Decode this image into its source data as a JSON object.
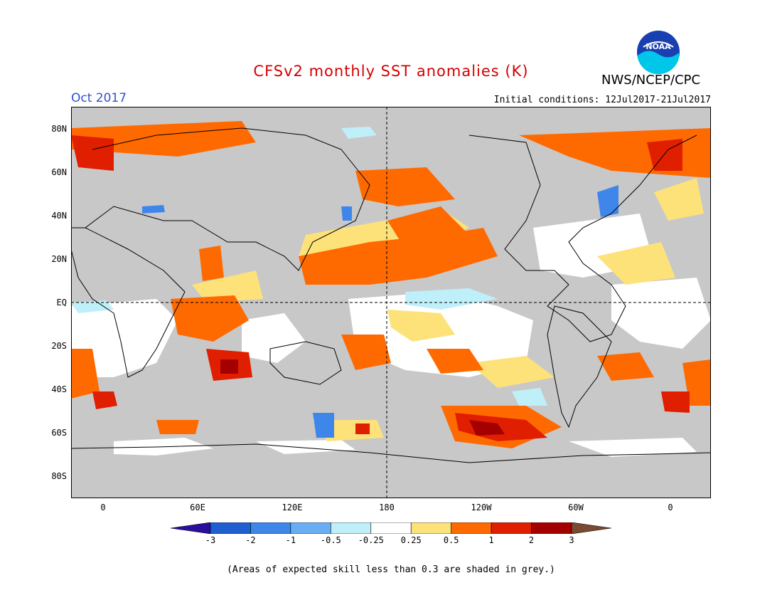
{
  "header": {
    "title": "CFSv2 monthly SST anomalies (K)",
    "agency": "NWS/NCEP/CPC",
    "month": "Oct 2017",
    "initial_conditions": "Initial conditions: 12Jul2017-21Jul2017",
    "logo_text": "NOAA"
  },
  "map": {
    "lat_labels": [
      "80N",
      "60N",
      "40N",
      "20N",
      "EQ",
      "20S",
      "40S",
      "60S",
      "80S"
    ],
    "lon_labels": [
      "0",
      "60E",
      "120E",
      "180",
      "120W",
      "60W",
      "0"
    ],
    "colors": {
      "land": "#c8c8c8",
      "grey_low_skill": "#c8c8c8",
      "neutral": "#ffffff"
    }
  },
  "colorbar": {
    "labels": [
      "-3",
      "-2",
      "-1",
      "-0.5",
      "-0.25",
      "0.25",
      "0.5",
      "1",
      "2",
      "3"
    ],
    "colors": [
      "#2b0f9c",
      "#1f5fd2",
      "#3f86ea",
      "#69aef2",
      "#bfeff8",
      "#ffffff",
      "#fde27a",
      "#ff6a00",
      "#e01e00",
      "#a50000",
      "#7a4a32"
    ]
  },
  "footnote": "(Areas of expected skill less than 0.3 are shaded in grey.)"
}
